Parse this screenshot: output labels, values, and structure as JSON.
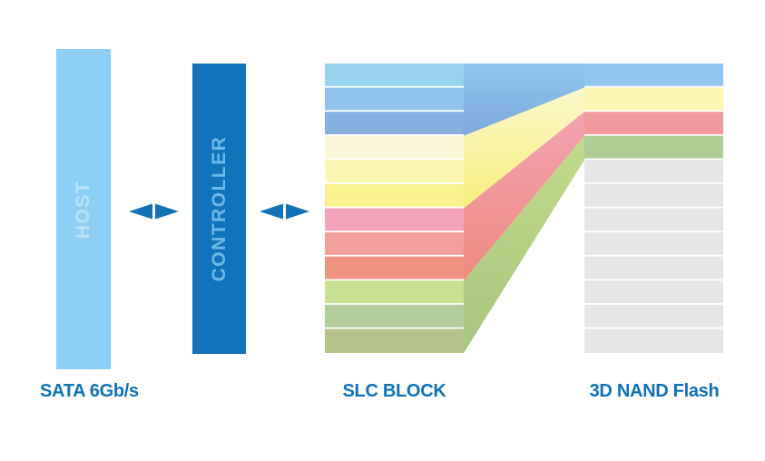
{
  "canvas": {
    "background": "#ffffff"
  },
  "colors": {
    "host_bar": "#8DCFF5",
    "host_label_text": "#B9E3FA",
    "controller_bar": "#1173B9",
    "controller_label_text": "#6CBAE8",
    "arrow": "#1272B6",
    "caption_text": "#0E72B9"
  },
  "host": {
    "label": "HOST",
    "caption": "SATA 6Gb/s"
  },
  "controller": {
    "label": "CONTROLLER"
  },
  "slc_block": {
    "label": "SLC BLOCK",
    "stripe_colors": [
      "#97D3EE",
      "#93C5EC",
      "#85B0E0",
      "#FBF8D8",
      "#FBF6B4",
      "#FAF28E",
      "#F1A3BA",
      "#F1A09C",
      "#EF9381",
      "#C8E092",
      "#B2CE9B",
      "#B7C489"
    ]
  },
  "nand_flash": {
    "label": "3D NAND Flash",
    "used_stripe_colors": [
      "#92C6EF",
      "#FDF6B3",
      "#F29B9D",
      "#AFCE96"
    ],
    "free_stripe_color": "#E6E6E6",
    "free_stripe_count": 8
  },
  "ribbons": [
    {
      "name": "blue-ribbon",
      "from": "#8FC6EC",
      "to": "#7FA9DB"
    },
    {
      "name": "yellow-ribbon",
      "from": "#FBF8CC",
      "to": "#F8EE7D"
    },
    {
      "name": "pink-ribbon",
      "from": "#F2A3B2",
      "to": "#EE8B7D"
    },
    {
      "name": "green-ribbon",
      "from": "#C2DA8C",
      "to": "#A7C67E"
    }
  ]
}
